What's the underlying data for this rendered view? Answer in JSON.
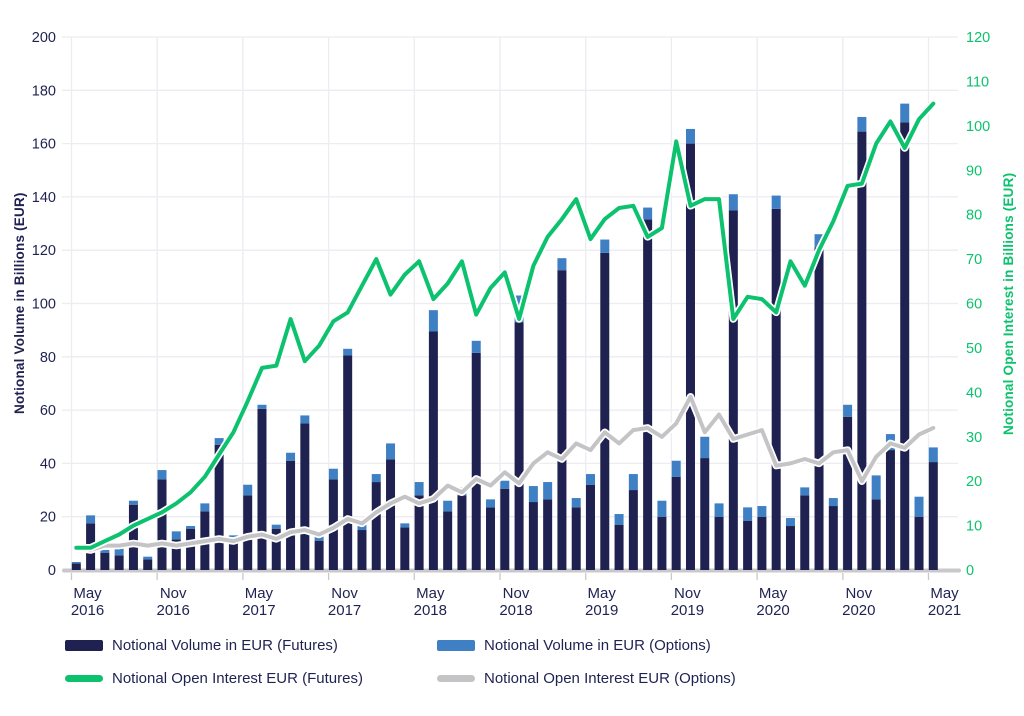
{
  "chart_data": {
    "type": "bar",
    "subtype": "stacked-bars-with-dual-axis-lines",
    "title": "",
    "x_start": "May 2016",
    "x_end": "May 2021",
    "months": [
      "May 2016",
      "Jun 2016",
      "Jul 2016",
      "Aug 2016",
      "Sep 2016",
      "Oct 2016",
      "Nov 2016",
      "Dec 2016",
      "Jan 2017",
      "Feb 2017",
      "Mar 2017",
      "Apr 2017",
      "May 2017",
      "Jun 2017",
      "Jul 2017",
      "Aug 2017",
      "Sep 2017",
      "Oct 2017",
      "Nov 2017",
      "Dec 2017",
      "Jan 2018",
      "Feb 2018",
      "Mar 2018",
      "Apr 2018",
      "May 2018",
      "Jun 2018",
      "Jul 2018",
      "Aug 2018",
      "Sep 2018",
      "Oct 2018",
      "Nov 2018",
      "Dec 2018",
      "Jan 2019",
      "Feb 2019",
      "Mar 2019",
      "Apr 2019",
      "May 2019",
      "Jun 2019",
      "Jul 2019",
      "Aug 2019",
      "Sep 2019",
      "Oct 2019",
      "Nov 2019",
      "Dec 2019",
      "Jan 2020",
      "Feb 2020",
      "Mar 2020",
      "Apr 2020",
      "May 2020",
      "Jun 2020",
      "Jul 2020",
      "Aug 2020",
      "Sep 2020",
      "Oct 2020",
      "Nov 2020",
      "Dec 2020",
      "Jan 2021",
      "Feb 2021",
      "Mar 2021",
      "Apr 2021",
      "May 2021"
    ],
    "x_tick_labels": [
      {
        "month": "May",
        "year": "2016",
        "index": 0
      },
      {
        "month": "Nov",
        "year": "2016",
        "index": 6
      },
      {
        "month": "May",
        "year": "2017",
        "index": 12
      },
      {
        "month": "Nov",
        "year": "2017",
        "index": 18
      },
      {
        "month": "May",
        "year": "2018",
        "index": 24
      },
      {
        "month": "Nov",
        "year": "2018",
        "index": 30
      },
      {
        "month": "May",
        "year": "2019",
        "index": 36
      },
      {
        "month": "Nov",
        "year": "2019",
        "index": 42
      },
      {
        "month": "May",
        "year": "2020",
        "index": 48
      },
      {
        "month": "Nov",
        "year": "2020",
        "index": 54
      },
      {
        "month": "May",
        "year": "2021",
        "index": 60
      }
    ],
    "left_axis": {
      "title": "Notional Volume in Billions (EUR)",
      "min": 0,
      "max": 200,
      "step": 20,
      "ticks": [
        0,
        20,
        40,
        60,
        80,
        100,
        120,
        140,
        160,
        180,
        200
      ]
    },
    "right_axis": {
      "title": "Notional Open Interest in Billions (EUR)",
      "min": 0,
      "max": 120,
      "step": 10,
      "ticks": [
        0,
        10,
        20,
        30,
        40,
        50,
        60,
        70,
        80,
        90,
        100,
        110,
        120
      ]
    },
    "series": [
      {
        "name": "Notional Volume in EUR (Futures)",
        "type": "bar",
        "axis": "left",
        "color": "#1f2251",
        "values": [
          2.5,
          17.5,
          6.5,
          5.5,
          24.5,
          4,
          34,
          11.5,
          15.5,
          22,
          47,
          10,
          28,
          60.5,
          15.5,
          41,
          55,
          11,
          34,
          80.5,
          15,
          33,
          41.5,
          16,
          28,
          89.5,
          22,
          28,
          81.5,
          23.5,
          30.5,
          93,
          25.5,
          26.5,
          112.5,
          23.5,
          32,
          119,
          17,
          30,
          131.5,
          20,
          35,
          160,
          42,
          20,
          135,
          18.5,
          20,
          135.5,
          16.5,
          28,
          121,
          24,
          57.5,
          164.5,
          26.5,
          45,
          168,
          20,
          40.5
        ]
      },
      {
        "name": "Notional Volume in EUR (Options)",
        "type": "bar",
        "axis": "left",
        "color": "#3e80c3",
        "values": [
          0.5,
          3,
          1,
          3,
          1.5,
          1,
          3.5,
          3,
          1,
          3,
          2.5,
          3,
          4,
          1.5,
          1.5,
          3,
          3,
          3,
          4,
          2.5,
          3,
          3,
          6,
          1.5,
          5,
          8,
          4,
          3,
          4.5,
          3,
          3,
          10,
          6,
          6.5,
          4.5,
          3.5,
          4,
          5,
          4,
          6,
          4.5,
          6,
          6,
          5.5,
          8,
          5,
          6,
          5,
          4,
          5,
          3,
          3,
          5,
          3,
          4.5,
          5.5,
          9,
          6,
          7,
          7.5,
          5.5
        ]
      },
      {
        "name": "Notional Open Interest EUR (Futures)",
        "type": "line",
        "axis": "right",
        "color": "#0cc26e",
        "values": [
          5,
          5,
          6.5,
          8,
          10,
          11.5,
          13,
          15,
          17.5,
          21,
          26,
          31,
          38,
          45.5,
          46,
          56.5,
          47,
          50.5,
          56,
          58,
          64,
          70,
          62,
          66.5,
          69.5,
          61,
          64.5,
          69.5,
          57.5,
          63.5,
          67,
          56.5,
          68.5,
          75,
          79,
          83.5,
          74.5,
          79,
          81.5,
          82,
          75,
          77,
          96.5,
          82,
          83.5,
          83.5,
          56.5,
          61.5,
          61,
          58,
          69.5,
          64,
          72,
          78.5,
          86.5,
          87,
          96,
          101,
          95,
          101.5,
          105
        ]
      },
      {
        "name": "Notional Open Interest EUR (Options)",
        "type": "line",
        "axis": "right",
        "color": "#c4c4c6",
        "values": [
          5,
          4.5,
          5.5,
          5.5,
          6,
          5.5,
          6,
          5.5,
          6,
          6.5,
          7,
          6.5,
          7.5,
          8,
          7,
          8.5,
          9,
          8,
          9.5,
          11.5,
          10.5,
          13,
          15,
          16.5,
          15,
          16,
          19,
          17.5,
          20.5,
          19,
          22,
          19.5,
          24,
          26.5,
          25,
          28.5,
          27,
          31,
          28.5,
          31.5,
          32,
          30,
          33,
          39,
          31,
          35,
          29.5,
          30.5,
          31.5,
          23.5,
          24,
          25,
          24,
          26.5,
          27,
          20,
          25.5,
          28.5,
          27.5,
          30.5,
          32
        ]
      }
    ],
    "grid": true,
    "legend_position": "bottom"
  },
  "colors": {
    "navy": "#1f2251",
    "blue": "#3e80c3",
    "green": "#0cc26e",
    "gray": "#c4c4c6",
    "gridline": "#ececf1",
    "baseline": "#c9c9cb",
    "left_tick_text": "#1f2251",
    "right_tick_text": "#0cc26e",
    "x_tick_text": "#1f2251",
    "background": "#ffffff"
  },
  "axes": {
    "left_title": "Notional Volume in Billions (EUR)",
    "right_title": "Notional Open Interest in Billions (EUR)"
  },
  "legend": {
    "items": [
      {
        "label": "Notional Volume in EUR (Futures)",
        "swatch": "bar",
        "color": "#1f2251"
      },
      {
        "label": "Notional Volume in EUR (Options)",
        "swatch": "bar",
        "color": "#3e80c3"
      },
      {
        "label": "Notional Open Interest EUR (Futures)",
        "swatch": "line",
        "color": "#0cc26e"
      },
      {
        "label": "Notional Open Interest EUR (Options)",
        "swatch": "line",
        "color": "#c4c4c6"
      }
    ]
  }
}
